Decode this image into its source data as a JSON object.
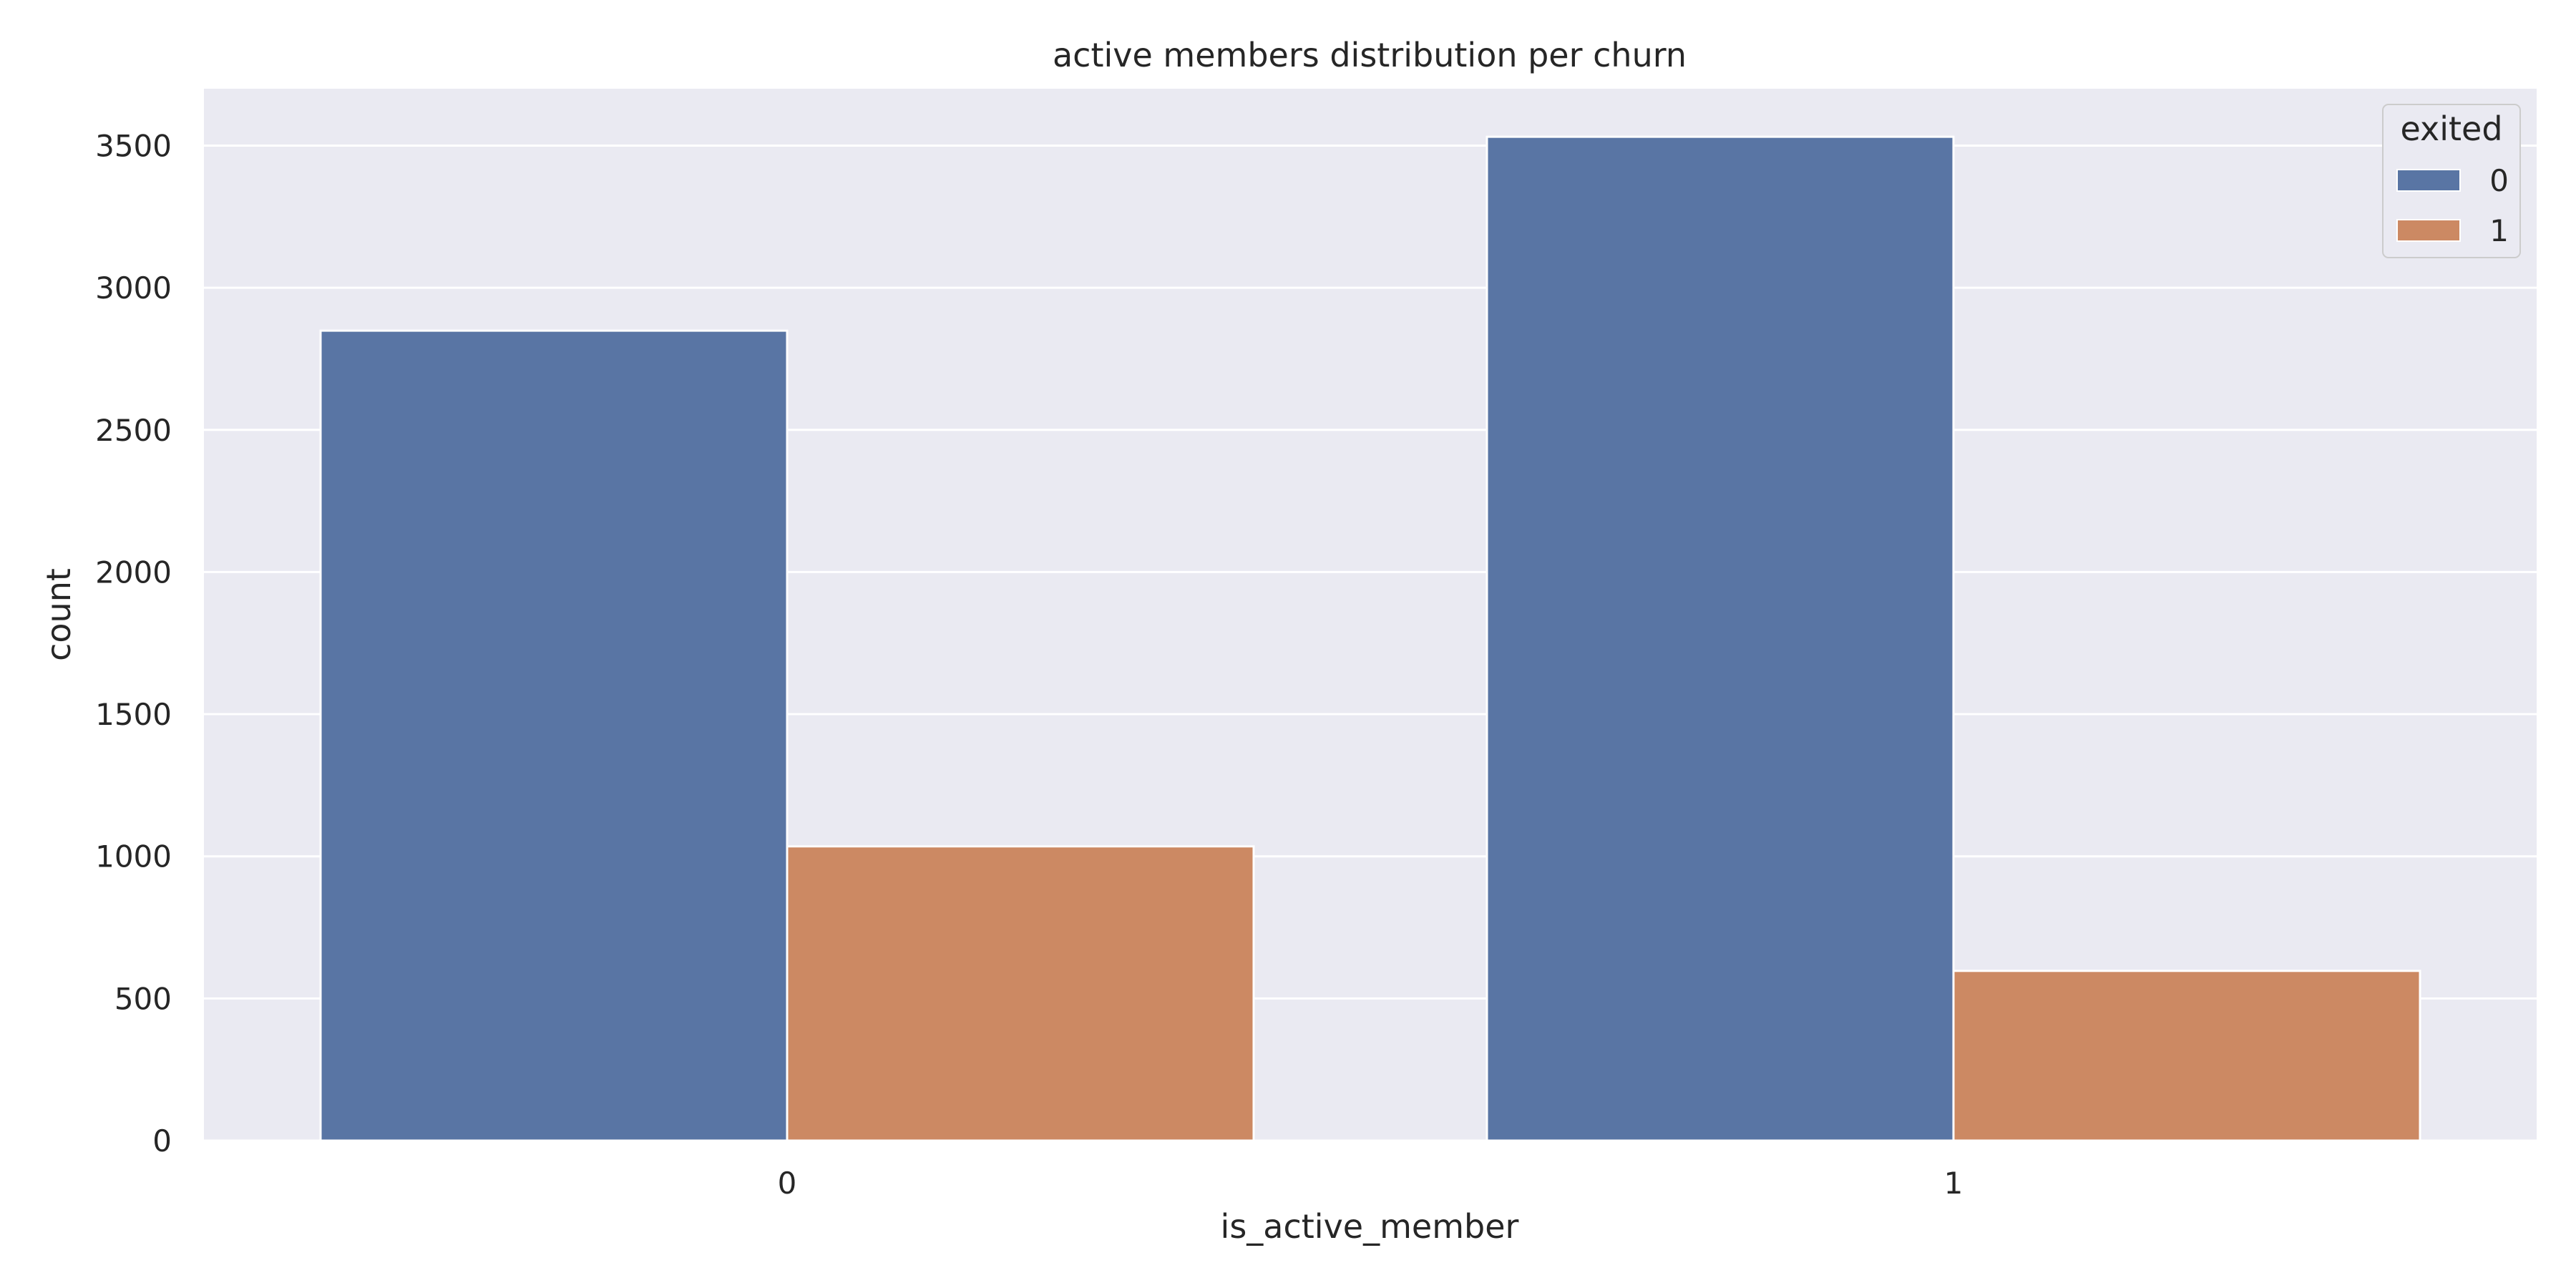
{
  "chart_data": {
    "type": "bar",
    "title": "active members distribution per churn",
    "xlabel": "is_active_member",
    "ylabel": "count",
    "categories": [
      "0",
      "1"
    ],
    "series": [
      {
        "name": "0",
        "color": "#5975a4",
        "values": [
          2849,
          3531
        ]
      },
      {
        "name": "1",
        "color": "#cc8963",
        "values": [
          1035,
          597
        ]
      }
    ],
    "ylim": [
      0,
      3700
    ],
    "yticks": [
      0,
      500,
      1000,
      1500,
      2000,
      2500,
      3000,
      3500
    ],
    "legend": {
      "title": "exited",
      "placement": "top-right"
    },
    "grid": true,
    "background": "#eaeaf2"
  }
}
